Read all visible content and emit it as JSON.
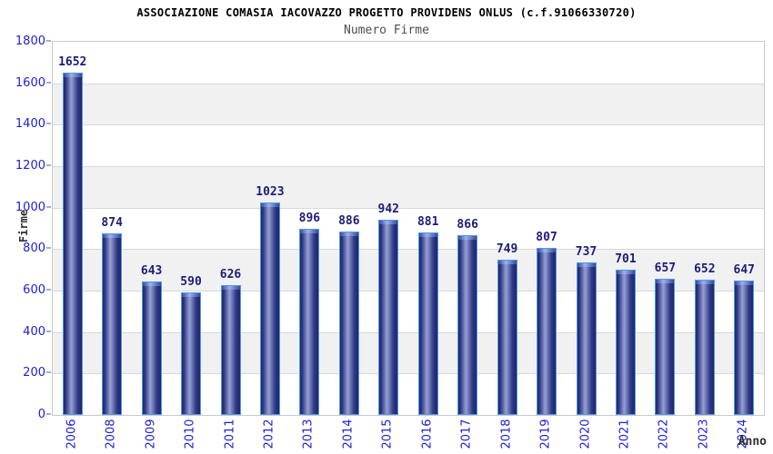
{
  "chart_data": {
    "type": "bar",
    "title": "ASSOCIAZIONE COMASIA IACOVAZZO PROGETTO PROVIDENS ONLUS (c.f.91066330720)",
    "subtitle": "Numero Firme",
    "xlabel": "Anno",
    "ylabel": "Firme",
    "categories": [
      "2006",
      "2008",
      "2009",
      "2010",
      "2011",
      "2012",
      "2013",
      "2014",
      "2015",
      "2016",
      "2017",
      "2018",
      "2019",
      "2020",
      "2021",
      "2022",
      "2023",
      "2024"
    ],
    "values": [
      1652,
      874,
      643,
      590,
      626,
      1023,
      896,
      886,
      942,
      881,
      866,
      749,
      807,
      737,
      701,
      657,
      652,
      647
    ],
    "ylim": [
      0,
      1800
    ],
    "ytick_step": 200,
    "grid": true,
    "legend_position": "none",
    "colors": {
      "bar_dark": "#1d266e",
      "bar_highlight": "#97a0d4",
      "bar_border": "#4e9ae4",
      "bar_cap": "#9db3ee",
      "value_label": "#1d1d78",
      "tick_label": "#2020cf",
      "title": "#000000",
      "subtitle": "#4d4d4d",
      "axis_title": "#2e2e2e",
      "band_gray": "#f1f1f1",
      "band_white": "#ffffff",
      "gridline": "#d8d8d8",
      "plot_border": "#c9c9c9",
      "tick_mark": "#a3abe4"
    }
  }
}
